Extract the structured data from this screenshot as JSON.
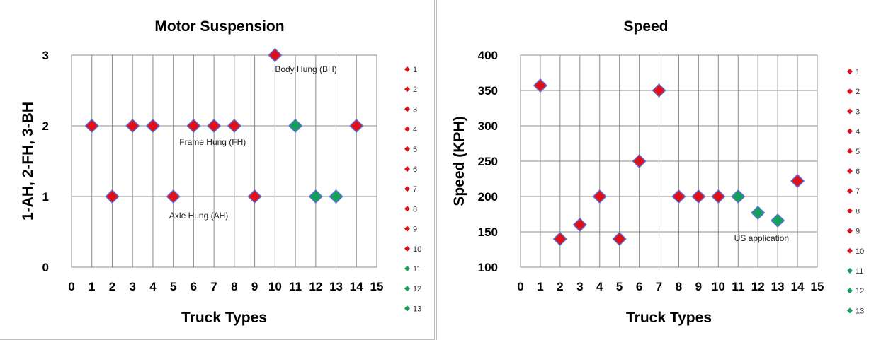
{
  "chart_data": [
    {
      "type": "scatter",
      "title": "Motor Suspension",
      "xlabel": "Truck Types",
      "ylabel": "1-AH,  2-FH, 3-BH",
      "xlim": [
        0,
        15
      ],
      "ylim": [
        0,
        3
      ],
      "x_ticks": [
        0,
        1,
        2,
        3,
        4,
        5,
        6,
        7,
        8,
        9,
        10,
        11,
        12,
        13,
        14,
        15
      ],
      "y_ticks": [
        0,
        1,
        2,
        3
      ],
      "grid": true,
      "legend_position": "right",
      "colors": {
        "red": "#e0101a",
        "green": "#15a05a",
        "edge": "#5b6fd6"
      },
      "points": [
        {
          "x": 1,
          "y": 2,
          "color": "red"
        },
        {
          "x": 2,
          "y": 1,
          "color": "red"
        },
        {
          "x": 3,
          "y": 2,
          "color": "red"
        },
        {
          "x": 4,
          "y": 2,
          "color": "red"
        },
        {
          "x": 5,
          "y": 1,
          "color": "red"
        },
        {
          "x": 6,
          "y": 2,
          "color": "red"
        },
        {
          "x": 7,
          "y": 2,
          "color": "red"
        },
        {
          "x": 8,
          "y": 2,
          "color": "red"
        },
        {
          "x": 9,
          "y": 1,
          "color": "red"
        },
        {
          "x": 10,
          "y": 3,
          "color": "red"
        },
        {
          "x": 11,
          "y": 2,
          "color": "green"
        },
        {
          "x": 12,
          "y": 1,
          "color": "green"
        },
        {
          "x": 13,
          "y": 1,
          "color": "green"
        },
        {
          "x": 14,
          "y": 2,
          "color": "red"
        }
      ],
      "annotations": [
        {
          "text": "Body Hung (BH)",
          "x": 10,
          "y": 2.8
        },
        {
          "text": "Frame Hung (FH)",
          "x": 5.3,
          "y": 1.77
        },
        {
          "text": "Axle Hung (AH)",
          "x": 4.8,
          "y": 0.73
        }
      ],
      "legend": [
        {
          "label": "1",
          "color": "red"
        },
        {
          "label": "2",
          "color": "red"
        },
        {
          "label": "3",
          "color": "red"
        },
        {
          "label": "4",
          "color": "red"
        },
        {
          "label": "5",
          "color": "red"
        },
        {
          "label": "6",
          "color": "red"
        },
        {
          "label": "7",
          "color": "red"
        },
        {
          "label": "8",
          "color": "red"
        },
        {
          "label": "9",
          "color": "red"
        },
        {
          "label": "10",
          "color": "red"
        },
        {
          "label": "11",
          "color": "green"
        },
        {
          "label": "12",
          "color": "green"
        },
        {
          "label": "13",
          "color": "green"
        }
      ]
    },
    {
      "type": "scatter",
      "title": "Speed",
      "xlabel": "Truck Types",
      "ylabel": "Speed (KPH)",
      "xlim": [
        0,
        15
      ],
      "ylim": [
        100,
        400
      ],
      "x_ticks": [
        0,
        1,
        2,
        3,
        4,
        5,
        6,
        7,
        8,
        9,
        10,
        11,
        12,
        13,
        14,
        15
      ],
      "y_ticks": [
        100,
        150,
        200,
        250,
        300,
        350,
        400
      ],
      "grid": true,
      "legend_position": "right",
      "colors": {
        "red": "#e0101a",
        "green": "#15a05a",
        "edge": "#5b6fd6",
        "annotation": "#2fbf5a"
      },
      "points": [
        {
          "x": 1,
          "y": 357,
          "color": "red"
        },
        {
          "x": 2,
          "y": 140,
          "color": "red"
        },
        {
          "x": 3,
          "y": 160,
          "color": "red"
        },
        {
          "x": 4,
          "y": 200,
          "color": "red"
        },
        {
          "x": 5,
          "y": 140,
          "color": "red"
        },
        {
          "x": 6,
          "y": 250,
          "color": "red"
        },
        {
          "x": 7,
          "y": 350,
          "color": "red"
        },
        {
          "x": 8,
          "y": 200,
          "color": "red"
        },
        {
          "x": 9,
          "y": 200,
          "color": "red"
        },
        {
          "x": 10,
          "y": 200,
          "color": "red"
        },
        {
          "x": 11,
          "y": 200,
          "color": "green"
        },
        {
          "x": 12,
          "y": 177,
          "color": "green"
        },
        {
          "x": 13,
          "y": 166,
          "color": "green"
        },
        {
          "x": 14,
          "y": 222,
          "color": "red"
        }
      ],
      "annotations": [
        {
          "text": "US application",
          "x": 10.8,
          "y": 141,
          "color": "annotation"
        }
      ],
      "legend": [
        {
          "label": "1",
          "color": "red"
        },
        {
          "label": "2",
          "color": "red"
        },
        {
          "label": "3",
          "color": "red"
        },
        {
          "label": "4",
          "color": "red"
        },
        {
          "label": "5",
          "color": "red"
        },
        {
          "label": "6",
          "color": "red"
        },
        {
          "label": "7",
          "color": "red"
        },
        {
          "label": "8",
          "color": "red"
        },
        {
          "label": "9",
          "color": "red"
        },
        {
          "label": "10",
          "color": "red"
        },
        {
          "label": "11",
          "color": "green"
        },
        {
          "label": "12",
          "color": "green"
        },
        {
          "label": "13",
          "color": "green"
        }
      ]
    }
  ]
}
